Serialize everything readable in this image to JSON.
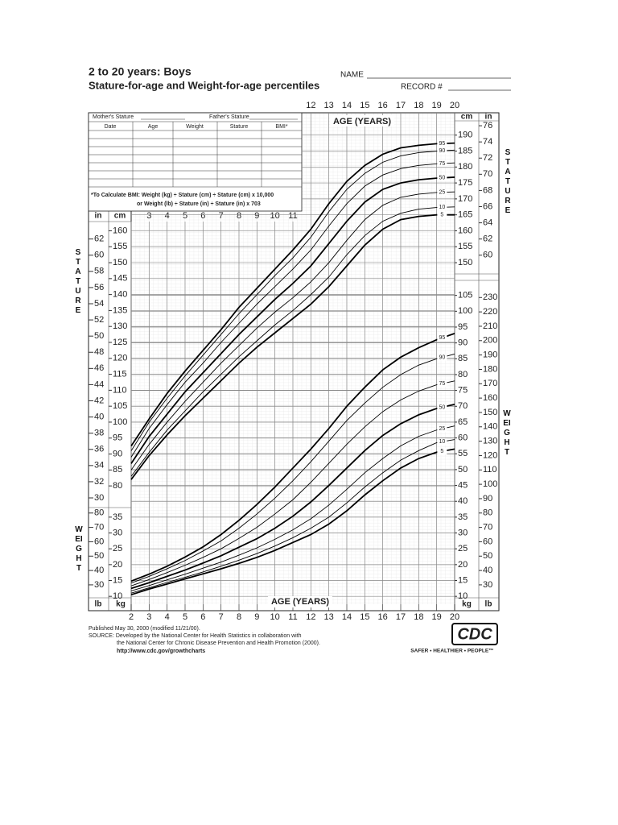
{
  "header": {
    "title": "2 to 20 years: Boys",
    "subtitle": "Stature-for-age and Weight-for-age percentiles",
    "name_label": "NAME",
    "record_label": "RECORD #"
  },
  "form": {
    "mothers_stature": "Mother's Stature",
    "fathers_stature": "Father's Stature",
    "columns": [
      "Date",
      "Age",
      "Weight",
      "Stature",
      "BMI*"
    ],
    "note_line1": "*To Calculate BMI: Weight (kg) ÷ Stature (cm) ÷ Stature (cm) x 10,000",
    "note_line2": "or Weight (lb) ÷ Stature (in) ÷ Stature (in) x 703"
  },
  "chart_data": [
    {
      "type": "line",
      "title": "STATURE",
      "x_label": "AGE (YEARS)",
      "y_unit": "cm",
      "y2_unit": "in",
      "x": [
        2,
        3,
        4,
        5,
        6,
        7,
        8,
        9,
        10,
        11,
        12,
        13,
        14,
        15,
        16,
        17,
        18,
        19,
        20
      ],
      "xlim": [
        2,
        20
      ],
      "xticks": [
        2,
        3,
        4,
        5,
        6,
        7,
        8,
        9,
        10,
        11,
        12,
        13,
        14,
        15,
        16,
        17,
        18,
        19,
        20
      ],
      "ylim": [
        77,
        197
      ],
      "yticks": [
        80,
        85,
        90,
        95,
        100,
        105,
        110,
        115,
        120,
        125,
        130,
        135,
        140,
        145,
        150,
        155,
        160,
        165,
        170,
        175,
        180,
        185,
        190
      ],
      "y2lim": [
        30.3,
        77.6
      ],
      "y2ticks": [
        30,
        32,
        34,
        36,
        38,
        40,
        42,
        44,
        46,
        48,
        50,
        52,
        54,
        56,
        58,
        60,
        62,
        64,
        66,
        68,
        70,
        72,
        74,
        76
      ],
      "grid": true,
      "series": [
        {
          "name": "5",
          "color": "#000000",
          "values": [
            82,
            89.5,
            96,
            102,
            107.5,
            113,
            118.5,
            123.5,
            128,
            132.5,
            137,
            142.5,
            149,
            155.5,
            160.5,
            163.5,
            164.5,
            165,
            165
          ]
        },
        {
          "name": "10",
          "color": "#000000",
          "values": [
            83,
            90.5,
            97.5,
            103.5,
            109.5,
            115,
            120.5,
            125.5,
            130.5,
            135,
            140,
            145.5,
            152.5,
            158.5,
            163,
            165.5,
            166.8,
            167.3,
            167.5
          ]
        },
        {
          "name": "25",
          "color": "#000000",
          "values": [
            85,
            93,
            100,
            106.5,
            112.5,
            118.5,
            124,
            129.5,
            134.5,
            139,
            144,
            150,
            157,
            163.5,
            168,
            170.5,
            171.5,
            172,
            172.2
          ]
        },
        {
          "name": "50",
          "color": "#000000",
          "values": [
            87,
            95.5,
            102.5,
            109.5,
            115.5,
            121.5,
            127.5,
            133,
            138.5,
            143.5,
            149,
            156,
            163,
            169,
            173,
            175,
            176,
            176.5,
            176.8
          ]
        },
        {
          "name": "75",
          "color": "#000000",
          "values": [
            89,
            98,
            105.5,
            112.5,
            118.5,
            125,
            131,
            137,
            142.5,
            148,
            154,
            161.5,
            168.5,
            174,
            177.5,
            179.5,
            180.5,
            181,
            181.3
          ]
        },
        {
          "name": "90",
          "color": "#000000",
          "values": [
            91,
            100,
            107.5,
            114.5,
            121,
            127.5,
            134,
            140,
            146,
            151.5,
            158,
            166,
            173,
            178,
            181.5,
            183.5,
            184.5,
            185,
            185.3
          ]
        },
        {
          "name": "95",
          "color": "#000000",
          "values": [
            92.5,
            101,
            109,
            116,
            122.5,
            129,
            136,
            142,
            148,
            154,
            160.5,
            168.5,
            175.5,
            180.5,
            184,
            186,
            186.8,
            187.3,
            187.5
          ]
        }
      ]
    },
    {
      "type": "line",
      "title": "WEIGHT",
      "x_label": "AGE (YEARS)",
      "y_unit": "kg",
      "y2_unit": "lb",
      "x": [
        2,
        3,
        4,
        5,
        6,
        7,
        8,
        9,
        10,
        11,
        12,
        13,
        14,
        15,
        16,
        17,
        18,
        19,
        20
      ],
      "xlim": [
        2,
        20
      ],
      "xticks": [
        2,
        3,
        4,
        5,
        6,
        7,
        8,
        9,
        10,
        11,
        12,
        13,
        14,
        15,
        16,
        17,
        18,
        19,
        20
      ],
      "ylim": [
        7.5,
        110
      ],
      "yticks": [
        10,
        15,
        20,
        25,
        30,
        35,
        40,
        45,
        50,
        55,
        60,
        65,
        70,
        75,
        80,
        85,
        90,
        95,
        100,
        105
      ],
      "y2lim": [
        16.5,
        242.5
      ],
      "y2ticks": [
        30,
        40,
        50,
        60,
        70,
        80,
        90,
        100,
        110,
        120,
        130,
        140,
        150,
        160,
        170,
        180,
        190,
        200,
        210,
        220,
        230
      ],
      "grid": true,
      "series": [
        {
          "name": "5",
          "color": "#000000",
          "values": [
            10.5,
            12.3,
            13.9,
            15.5,
            17.1,
            18.7,
            20.4,
            22.3,
            24.5,
            27,
            29.5,
            32.8,
            37,
            42,
            46.5,
            50.5,
            53.5,
            55.5,
            56.5
          ]
        },
        {
          "name": "10",
          "color": "#000000",
          "values": [
            11,
            12.7,
            14.4,
            16,
            17.7,
            19.5,
            21.4,
            23.5,
            25.9,
            28.5,
            31.5,
            35,
            39.5,
            44.5,
            49,
            53,
            56,
            58.5,
            59.5
          ]
        },
        {
          "name": "25",
          "color": "#000000",
          "values": [
            11.7,
            13.4,
            15.2,
            17,
            18.9,
            20.8,
            23,
            25.3,
            28,
            31,
            34.5,
            38.8,
            43.8,
            49,
            53.5,
            57.5,
            60.5,
            62.5,
            63.8
          ]
        },
        {
          "name": "50",
          "color": "#000000",
          "values": [
            12.5,
            14.3,
            16.3,
            18.3,
            20.5,
            22.8,
            25.5,
            28.2,
            31.5,
            35.3,
            39.8,
            45,
            50.5,
            56,
            60.8,
            64.5,
            67.3,
            69.3,
            70.6
          ]
        },
        {
          "name": "75",
          "color": "#000000",
          "values": [
            13.3,
            15.3,
            17.5,
            19.8,
            22.3,
            25,
            28.3,
            31.8,
            36,
            40.5,
            46,
            52,
            58,
            63.5,
            68.3,
            72,
            74.8,
            76.8,
            78
          ]
        },
        {
          "name": "90",
          "color": "#000000",
          "values": [
            14.2,
            16.3,
            18.7,
            21.3,
            24.3,
            27.5,
            31.5,
            36,
            41,
            46.5,
            52.5,
            59,
            65.5,
            71,
            76,
            80,
            83,
            85,
            86.5
          ]
        },
        {
          "name": "95",
          "color": "#000000",
          "values": [
            14.8,
            17,
            19.5,
            22.4,
            25.6,
            29.5,
            34,
            39,
            44.5,
            50.5,
            56.5,
            63,
            70,
            76,
            81.5,
            85.5,
            88.5,
            91,
            93
          ]
        }
      ]
    }
  ],
  "footer": {
    "published": "Published May 30, 2000 (modified 11/21/00).",
    "source_line1": "SOURCE: Developed by the National Center for Health Statistics in collaboration with",
    "source_line2": "the National Center for Chronic Disease Prevention and Health Promotion (2000).",
    "url": "http://www.cdc.gov/growthcharts"
  },
  "logo": {
    "name": "CDC",
    "tagline": "SAFER • HEALTHIER • PEOPLE™"
  }
}
